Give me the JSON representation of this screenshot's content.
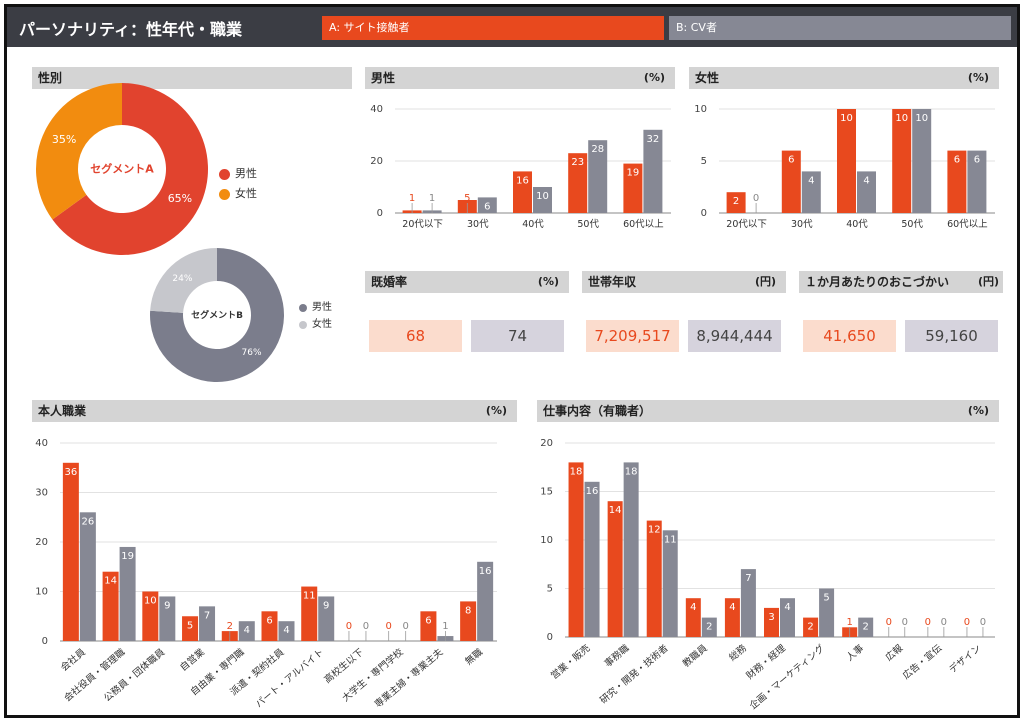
{
  "header": {
    "title": "パーソナリティ：性年代・職業",
    "segment_a": "A: サイト接触者",
    "segment_b": "B: CV者"
  },
  "colors": {
    "a": "#e8491e",
    "b": "#868894",
    "male_a": "#e1432e",
    "female_a": "#f28c0f",
    "male_b": "#7b7d8c",
    "female_b": "#c6c7cc"
  },
  "sections": {
    "gender": {
      "title": "性別"
    },
    "male": {
      "title": "男性",
      "unit": "(%)"
    },
    "female": {
      "title": "女性",
      "unit": "(%)"
    },
    "marriage": {
      "title": "既婚率",
      "unit": "(%)"
    },
    "income": {
      "title": "世帯年収",
      "unit": "(円)"
    },
    "allowance": {
      "title": "１か月あたりのおこづかい",
      "unit": "(円)"
    },
    "occupation": {
      "title": "本人職業",
      "unit": "(%)"
    },
    "job": {
      "title": "仕事内容（有職者）",
      "unit": "(%)"
    }
  },
  "kpis": {
    "marriage": {
      "a": "68",
      "b": "74"
    },
    "income": {
      "a": "7,209,517",
      "b": "8,944,444"
    },
    "allowance": {
      "a": "41,650",
      "b": "59,160"
    }
  },
  "legends": {
    "a": {
      "male": "男性",
      "female": "女性"
    },
    "b": {
      "male": "男性",
      "female": "女性"
    }
  },
  "chart_data": [
    {
      "id": "donut_a",
      "type": "pie",
      "center_label": "セグメントA",
      "categories": [
        "男性",
        "女性"
      ],
      "values": [
        65,
        35
      ],
      "labels": [
        "65%",
        "35%"
      ]
    },
    {
      "id": "donut_b",
      "type": "pie",
      "center_label": "セグメントB",
      "categories": [
        "男性",
        "女性"
      ],
      "values": [
        76,
        24
      ],
      "labels": [
        "76%",
        "24%"
      ]
    },
    {
      "id": "male",
      "type": "bar",
      "categories": [
        "20代以下",
        "30代",
        "40代",
        "50代",
        "60代以上"
      ],
      "series": [
        {
          "values": [
            1,
            5,
            16,
            23,
            19
          ]
        },
        {
          "values": [
            1,
            6,
            10,
            28,
            32
          ]
        }
      ],
      "ylim": [
        0,
        40
      ],
      "yticks": [
        0,
        20,
        40
      ]
    },
    {
      "id": "female",
      "type": "bar",
      "categories": [
        "20代以下",
        "30代",
        "40代",
        "50代",
        "60代以上"
      ],
      "series": [
        {
          "values": [
            2,
            6,
            10,
            10,
            6
          ]
        },
        {
          "values": [
            0,
            4,
            4,
            10,
            6
          ]
        }
      ],
      "ylim": [
        0,
        10
      ],
      "yticks": [
        0,
        5,
        10
      ]
    },
    {
      "id": "occupation",
      "type": "bar",
      "categories": [
        "会社員",
        "会社役員・管理職",
        "公務員・団体職員",
        "自営業",
        "自由業・専門職",
        "派遣・契約社員",
        "パート・アルバイト",
        "高校生以下",
        "大学生・専門学校",
        "専業主婦・専業主夫",
        "無職"
      ],
      "series": [
        {
          "values": [
            36,
            14,
            10,
            5,
            2,
            6,
            11,
            0,
            0,
            6,
            8
          ]
        },
        {
          "values": [
            26,
            19,
            9,
            7,
            4,
            4,
            9,
            0,
            0,
            1,
            16
          ]
        }
      ],
      "ylim": [
        0,
        40
      ],
      "yticks": [
        0,
        10,
        20,
        30,
        40
      ]
    },
    {
      "id": "job",
      "type": "bar",
      "categories": [
        "営業・販売",
        "事務職",
        "研究・開発・技術者",
        "教職員",
        "総務",
        "財務・経理",
        "企画・マーケティング",
        "人事",
        "広報",
        "広告・宣伝",
        "デザイン"
      ],
      "series": [
        {
          "values": [
            18,
            14,
            12,
            4,
            4,
            3,
            2,
            1,
            0,
            0,
            0
          ]
        },
        {
          "values": [
            16,
            18,
            11,
            2,
            7,
            4,
            5,
            2,
            0,
            0,
            0
          ]
        }
      ],
      "ylim": [
        0,
        20
      ],
      "yticks": [
        0,
        5,
        10,
        15,
        20
      ]
    }
  ]
}
